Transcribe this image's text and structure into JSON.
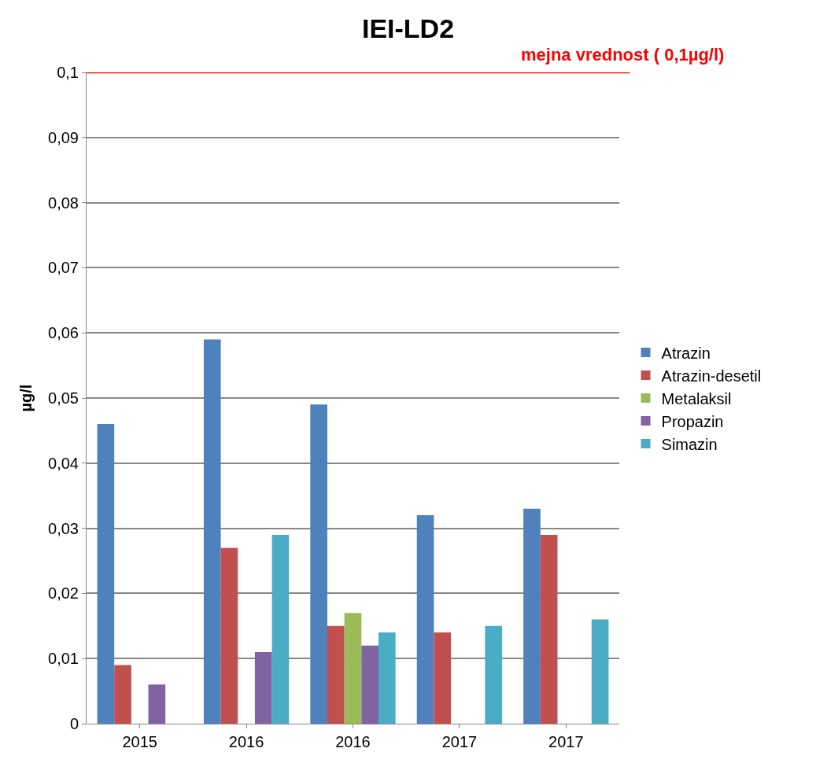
{
  "chart_data": {
    "type": "bar",
    "title": "IEI-LD2",
    "ylabel": "µg/l",
    "categories": [
      "2015",
      "2016",
      "2016",
      "2017",
      "2017"
    ],
    "series": [
      {
        "name": "Atrazin",
        "color": "#4f81bd",
        "values": [
          0.046,
          0.059,
          0.049,
          0.032,
          0.033
        ]
      },
      {
        "name": "Atrazin-desetil",
        "color": "#c0504d",
        "values": [
          0.009,
          0.027,
          0.015,
          0.014,
          0.029
        ]
      },
      {
        "name": "Metalaksil",
        "color": "#9bbb59",
        "values": [
          null,
          null,
          0.017,
          null,
          null
        ]
      },
      {
        "name": "Propazin",
        "color": "#8064a2",
        "values": [
          0.006,
          0.011,
          0.012,
          null,
          null
        ]
      },
      {
        "name": "Simazin",
        "color": "#4bacc6",
        "values": [
          null,
          0.029,
          0.014,
          0.015,
          0.016
        ]
      }
    ],
    "ylim": [
      0,
      0.1
    ],
    "yticks": [
      0,
      {
        "value": 0.01,
        "label": "0,01"
      },
      {
        "value": 0.02,
        "label": "0,02"
      },
      {
        "value": 0.03,
        "label": "0,03"
      },
      {
        "value": 0.04,
        "label": "0,04"
      },
      {
        "value": 0.05,
        "label": "0,05"
      },
      {
        "value": 0.06,
        "label": "0,06"
      },
      {
        "value": 0.07,
        "label": "0,07"
      },
      {
        "value": 0.08,
        "label": "0,08"
      },
      {
        "value": 0.09,
        "label": "0,09"
      },
      {
        "value": 0.1,
        "label": "0,1"
      }
    ],
    "grid": "y",
    "legend": "right",
    "ref_lines": [
      {
        "axis": "y",
        "value": 0.1,
        "label": "mejna vrednost ( 0,1µg/l)",
        "color": "#ff0000",
        "line_style": "solid"
      }
    ]
  }
}
